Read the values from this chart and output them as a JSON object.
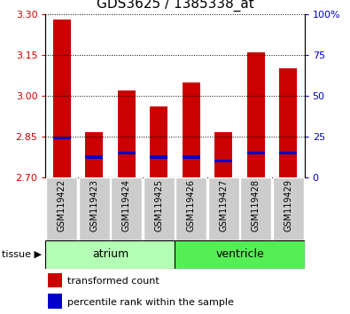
{
  "title": "GDS3625 / 1385338_at",
  "samples": [
    "GSM119422",
    "GSM119423",
    "GSM119424",
    "GSM119425",
    "GSM119426",
    "GSM119427",
    "GSM119428",
    "GSM119429"
  ],
  "red_values": [
    3.28,
    2.865,
    3.02,
    2.96,
    3.05,
    2.865,
    3.16,
    3.1
  ],
  "blue_values": [
    2.845,
    2.775,
    2.79,
    2.775,
    2.775,
    2.76,
    2.79,
    2.79
  ],
  "bar_bottom": 2.7,
  "ylim": [
    2.7,
    3.3
  ],
  "yticks_left": [
    2.7,
    2.85,
    3.0,
    3.15,
    3.3
  ],
  "yticks_right": [
    0,
    25,
    50,
    75,
    100
  ],
  "right_ylim": [
    0,
    100
  ],
  "tissue_groups": [
    {
      "label": "atrium",
      "start": 0,
      "end": 4,
      "color": "#b3ffb3"
    },
    {
      "label": "ventricle",
      "start": 4,
      "end": 8,
      "color": "#55ee55"
    }
  ],
  "red_color": "#cc0000",
  "blue_color": "#0000cc",
  "bar_width": 0.55,
  "tick_label_color_left": "#cc0000",
  "tick_label_color_right": "#0000cc",
  "xlabel_area_color": "#cccccc",
  "legend_red_label": "transformed count",
  "legend_blue_label": "percentile rank within the sample",
  "tissue_label": "tissue",
  "blue_bar_height": 0.01,
  "figsize": [
    3.95,
    3.54
  ],
  "dpi": 100
}
